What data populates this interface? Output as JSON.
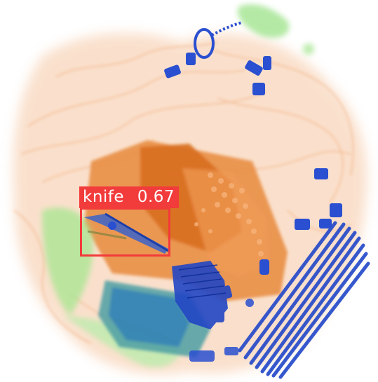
{
  "image": {
    "subject": "x-ray-baggage-scan",
    "palette": {
      "organic": "#f2a46e",
      "organic_dense": "#e07a2a",
      "metal": "#2a4fd0",
      "inorganic": "#8ee07a",
      "background": "#ffffff"
    }
  },
  "detections": [
    {
      "class": "knife",
      "score": "0.67",
      "color": "#f23b3b"
    }
  ]
}
